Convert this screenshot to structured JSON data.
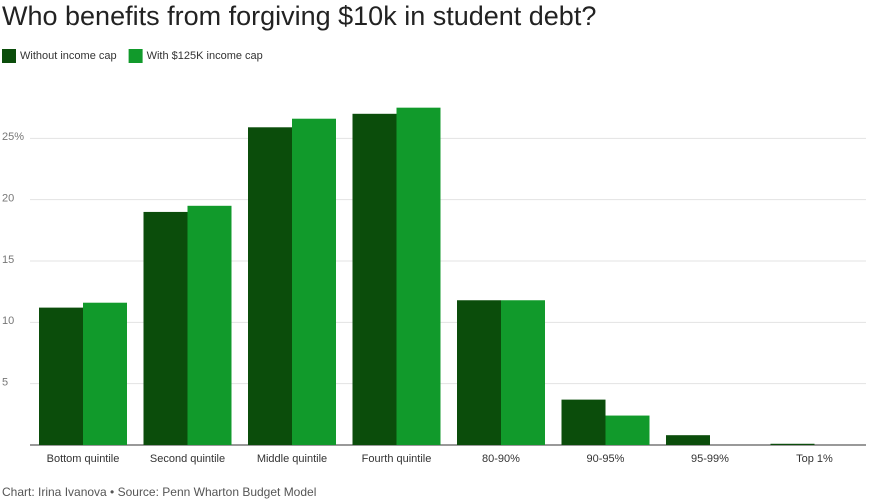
{
  "chart_data": {
    "type": "bar",
    "title": "Who benefits from forgiving $10k in student debt?",
    "source": "Chart: Irina Ivanova • Source: Penn Wharton Budget Model",
    "categories": [
      "Bottom quintile",
      "Second quintile",
      "Middle quintile",
      "Fourth quintile",
      "80-90%",
      "90-95%",
      "95-99%",
      "Top 1%"
    ],
    "series": [
      {
        "name": "Without income cap",
        "color": "#0b4d0b",
        "values": [
          11.2,
          19.0,
          25.9,
          27.0,
          11.8,
          3.7,
          0.8,
          0.1
        ]
      },
      {
        "name": "With $125K income cap",
        "color": "#119a2b",
        "values": [
          11.6,
          19.5,
          26.6,
          27.5,
          11.8,
          2.4,
          0,
          0
        ]
      }
    ],
    "ylim": [
      0,
      30
    ],
    "yticks": [
      5,
      10,
      15,
      20,
      {
        "value": 25,
        "label": "25%"
      }
    ],
    "grid": true
  }
}
